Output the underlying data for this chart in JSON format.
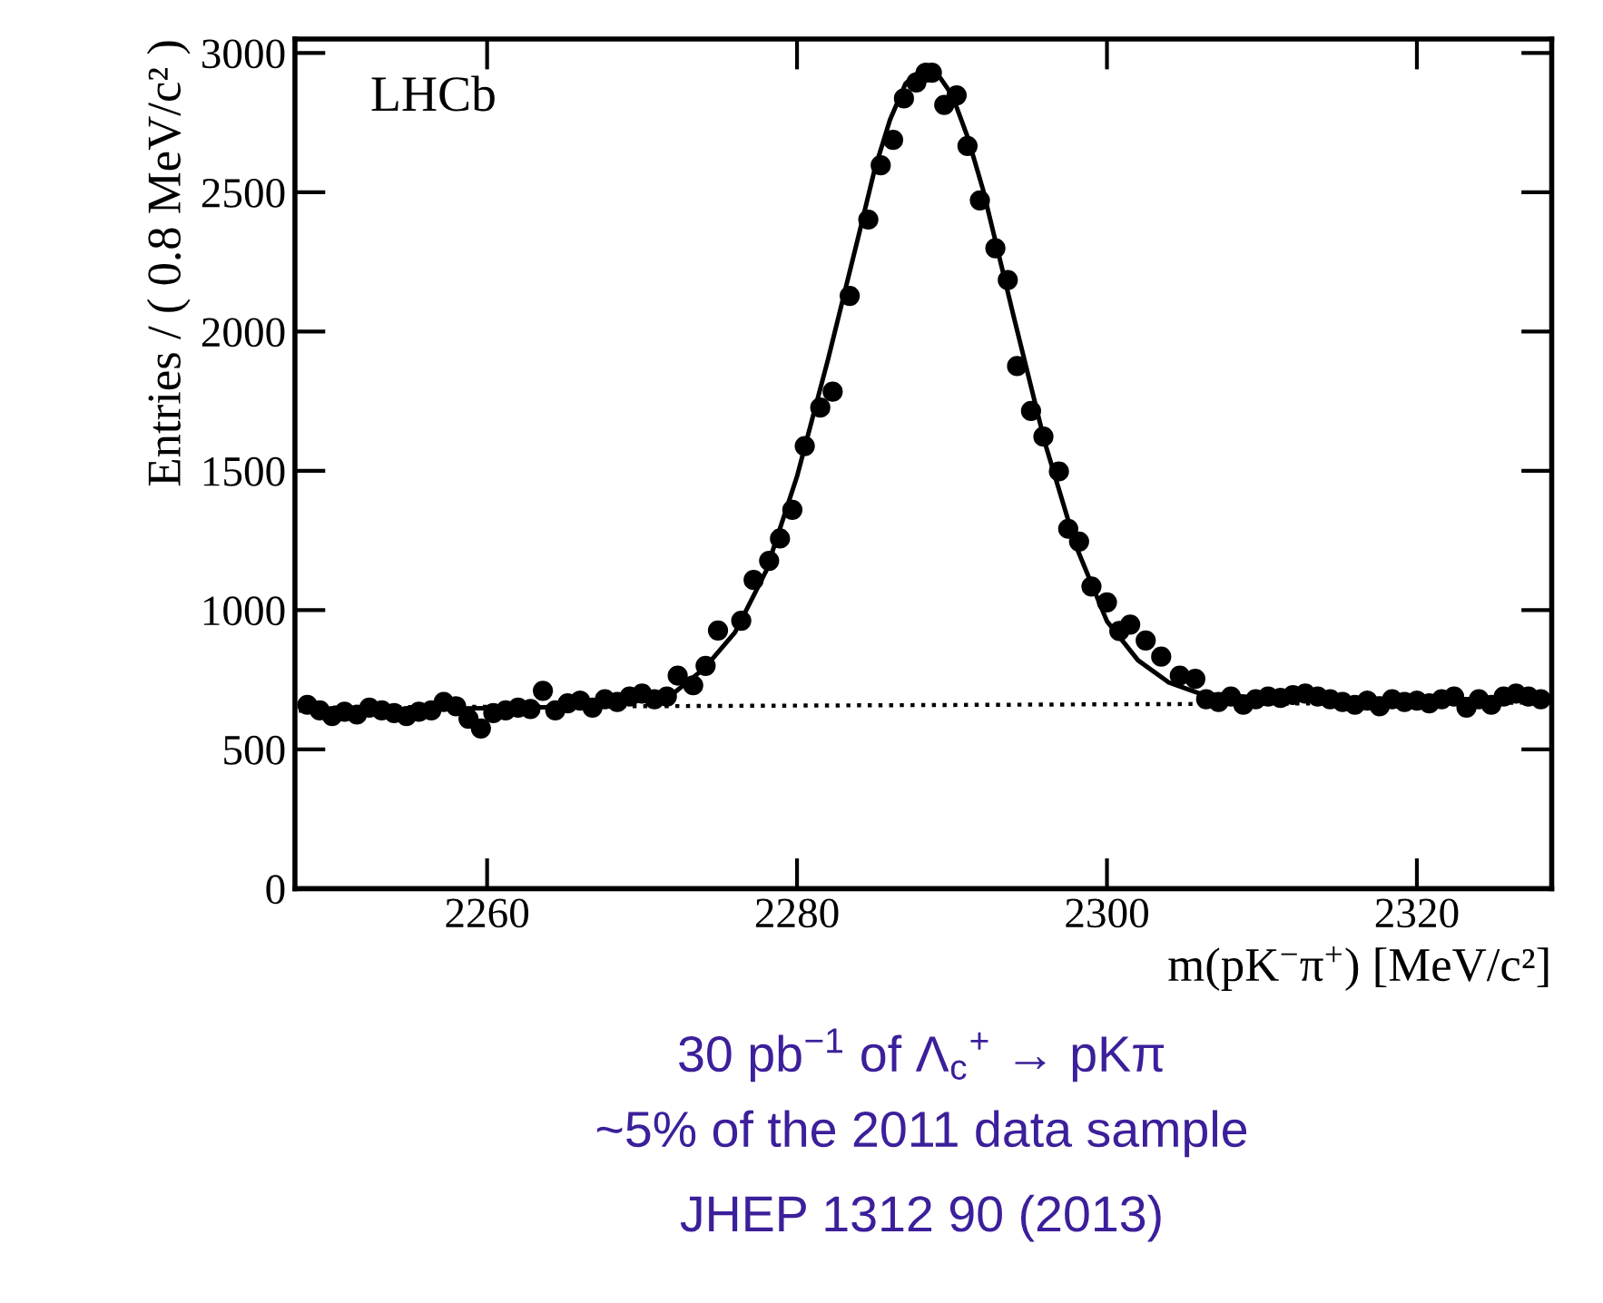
{
  "chart_data": {
    "type": "scatter",
    "xlabel": "m(pK$^{−}$π$^{+}$) [MeV/c²]",
    "ylabel": "Entries / ( 0.8 MeV/c² )",
    "xlim": [
      2247.6,
      2328.7
    ],
    "ylim": [
      0,
      3050
    ],
    "xticks": [
      2260,
      2280,
      2300,
      2320
    ],
    "yticks": [
      0,
      500,
      1000,
      1500,
      2000,
      2500,
      3000
    ],
    "grid": false,
    "legend": false,
    "series": [
      {
        "color": "#000000",
        "marker": "circle",
        "x": [
          2248.4,
          2249.2,
          2250.0,
          2250.8,
          2251.6,
          2252.4,
          2253.2,
          2254.0,
          2254.8,
          2255.6,
          2256.4,
          2257.2,
          2258.0,
          2258.8,
          2259.6,
          2260.4,
          2261.2,
          2262.0,
          2262.8,
          2263.6,
          2264.4,
          2265.2,
          2266.0,
          2266.8,
          2267.6,
          2268.4,
          2269.2,
          2270.0,
          2270.8,
          2271.6,
          2272.3,
          2273.3,
          2274.1,
          2274.9,
          2276.4,
          2277.2,
          2278.2,
          2278.9,
          2279.7,
          2280.5,
          2281.5,
          2282.3,
          2283.4,
          2284.6,
          2285.4,
          2286.2,
          2286.9,
          2287.7,
          2288.3,
          2288.7,
          2289.5,
          2290.3,
          2291.0,
          2291.8,
          2292.8,
          2293.6,
          2294.2,
          2295.1,
          2295.9,
          2296.9,
          2297.5,
          2298.2,
          2299.0,
          2300.0,
          2300.8,
          2301.5,
          2302.5,
          2303.5,
          2304.7,
          2305.7,
          2306.4,
          2307.2,
          2308.0,
          2308.8,
          2309.6,
          2310.4,
          2311.2,
          2312.0,
          2312.8,
          2313.6,
          2314.4,
          2315.2,
          2316.0,
          2316.8,
          2317.6,
          2318.4,
          2319.2,
          2320.0,
          2320.8,
          2321.6,
          2322.4,
          2323.2,
          2324.0,
          2324.8,
          2325.6,
          2326.4,
          2327.2,
          2328.0
        ],
        "values": [
          660,
          640,
          620,
          635,
          625,
          650,
          640,
          630,
          620,
          635,
          640,
          670,
          655,
          610,
          575,
          630,
          640,
          650,
          645,
          710,
          640,
          665,
          675,
          650,
          680,
          670,
          690,
          700,
          680,
          690,
          765,
          730,
          800,
          927,
          962,
          1108,
          1177,
          1257,
          1360,
          1589,
          1727,
          1784,
          2128,
          2402,
          2597,
          2688,
          2837,
          2894,
          2929,
          2929,
          2814,
          2848,
          2666,
          2471,
          2299,
          2185,
          1876,
          1715,
          1623,
          1498,
          1292,
          1246,
          1085,
          1028,
          925,
          948,
          891,
          833,
          765,
          753,
          680,
          670,
          690,
          660,
          680,
          690,
          685,
          695,
          700,
          690,
          680,
          670,
          660,
          675,
          655,
          680,
          670,
          675,
          665,
          680,
          690,
          650,
          680,
          660,
          690,
          700,
          690,
          680
        ]
      },
      {
        "type": "line",
        "color": "#000000",
        "line_style": "solid",
        "x": [
          2248,
          2260,
          2268,
          2272,
          2274,
          2276,
          2278,
          2280,
          2282,
          2284,
          2285,
          2286,
          2287,
          2288,
          2288.5,
          2289,
          2290,
          2291,
          2292,
          2294,
          2296,
          2298,
          2300,
          2302,
          2304,
          2306,
          2310,
          2320,
          2328
        ],
        "values": [
          640,
          648,
          655,
          700,
          790,
          920,
          1140,
          1480,
          1900,
          2350,
          2580,
          2760,
          2890,
          2940,
          2945,
          2930,
          2850,
          2700,
          2510,
          2050,
          1600,
          1230,
          960,
          820,
          740,
          700,
          685,
          680,
          680
        ]
      },
      {
        "type": "line",
        "color": "#000000",
        "line_style": "dotted",
        "x": [
          2248,
          2328
        ],
        "values": [
          650,
          668
        ]
      }
    ],
    "annotations": [
      "LHCb",
      "30 pb$^{−1}$ of Λ$_{c}$$^{+}$ → pKπ",
      "~5% of the 2011 data sample",
      "JHEP 1312 90 (2013)"
    ]
  }
}
